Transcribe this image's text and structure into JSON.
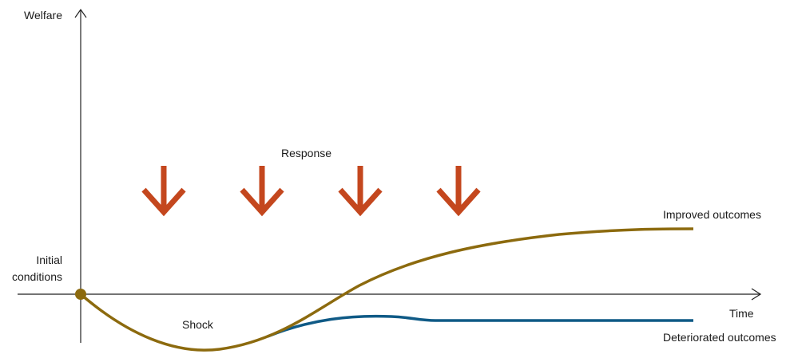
{
  "axes": {
    "y_label": "Welfare",
    "x_label": "Time"
  },
  "labels": {
    "initial_conditions_line1": "Initial",
    "initial_conditions_line2": "conditions",
    "response": "Response",
    "shock": "Shock",
    "improved_outcomes": "Improved outcomes",
    "deteriorated_outcomes": "Deteriorated outcomes"
  },
  "response_arrow_count": 4,
  "colors": {
    "improved_curve": "#8c6a0e",
    "deteriorated_curve": "#0f5a86",
    "response_arrows": "#c4471e",
    "axes": "#222222",
    "start_point": "#8c6a0e"
  }
}
